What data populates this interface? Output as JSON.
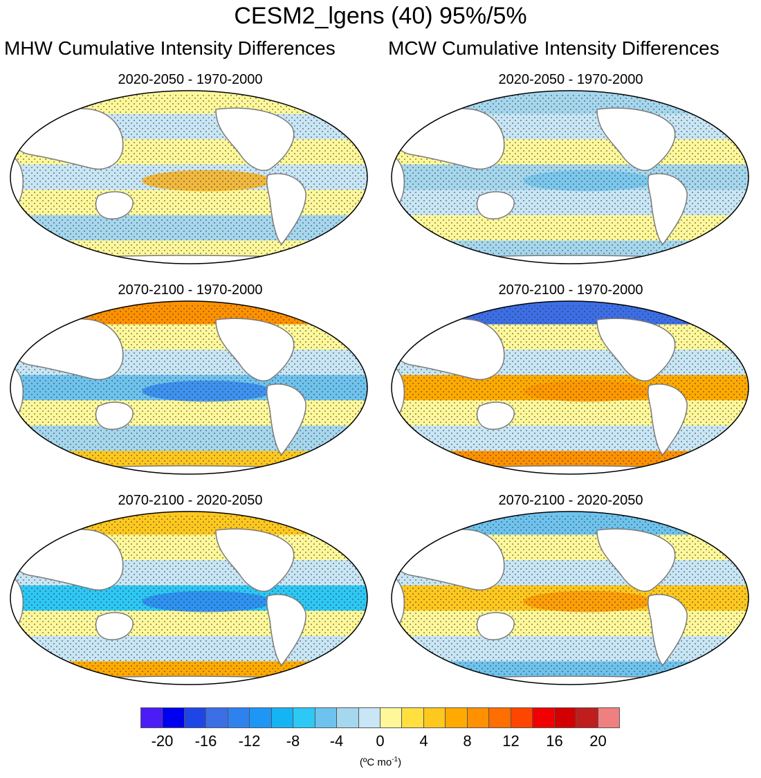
{
  "title": "CESM2_lgens (40) 95%/5%",
  "columns": [
    {
      "title": "MHW Cumulative Intensity Differences"
    },
    {
      "title": "MCW Cumulative Intensity Differences"
    }
  ],
  "panels": [
    {
      "label": "2020-2050 - 1970-2000",
      "column": "MHW"
    },
    {
      "label": "2020-2050 - 1970-2000",
      "column": "MCW"
    },
    {
      "label": "2070-2100 - 1970-2000",
      "column": "MHW"
    },
    {
      "label": "2070-2100 - 1970-2000",
      "column": "MCW"
    },
    {
      "label": "2070-2100 - 2020-2050",
      "column": "MHW"
    },
    {
      "label": "2070-2100 - 2020-2050",
      "column": "MCW"
    }
  ],
  "colorbar": {
    "ticks": [
      "-20",
      "-16",
      "-12",
      "-8",
      "-4",
      "0",
      "4",
      "8",
      "12",
      "16",
      "20"
    ],
    "units_base": "(ºC mo",
    "units_sup": "-1",
    "units_end": ")",
    "colors": [
      "#4b1cf5",
      "#0000f0",
      "#1e46e6",
      "#3c6ee6",
      "#2d82f0",
      "#1e96f5",
      "#14b4f5",
      "#2dc8f5",
      "#6ec3ee",
      "#a5d7ee",
      "#c8e6f5",
      "#fff89a",
      "#ffe040",
      "#ffc81e",
      "#ffaa00",
      "#ff9100",
      "#ff6e00",
      "#ff4600",
      "#f00000",
      "#d20000",
      "#be1e1e",
      "#f08080"
    ]
  }
}
